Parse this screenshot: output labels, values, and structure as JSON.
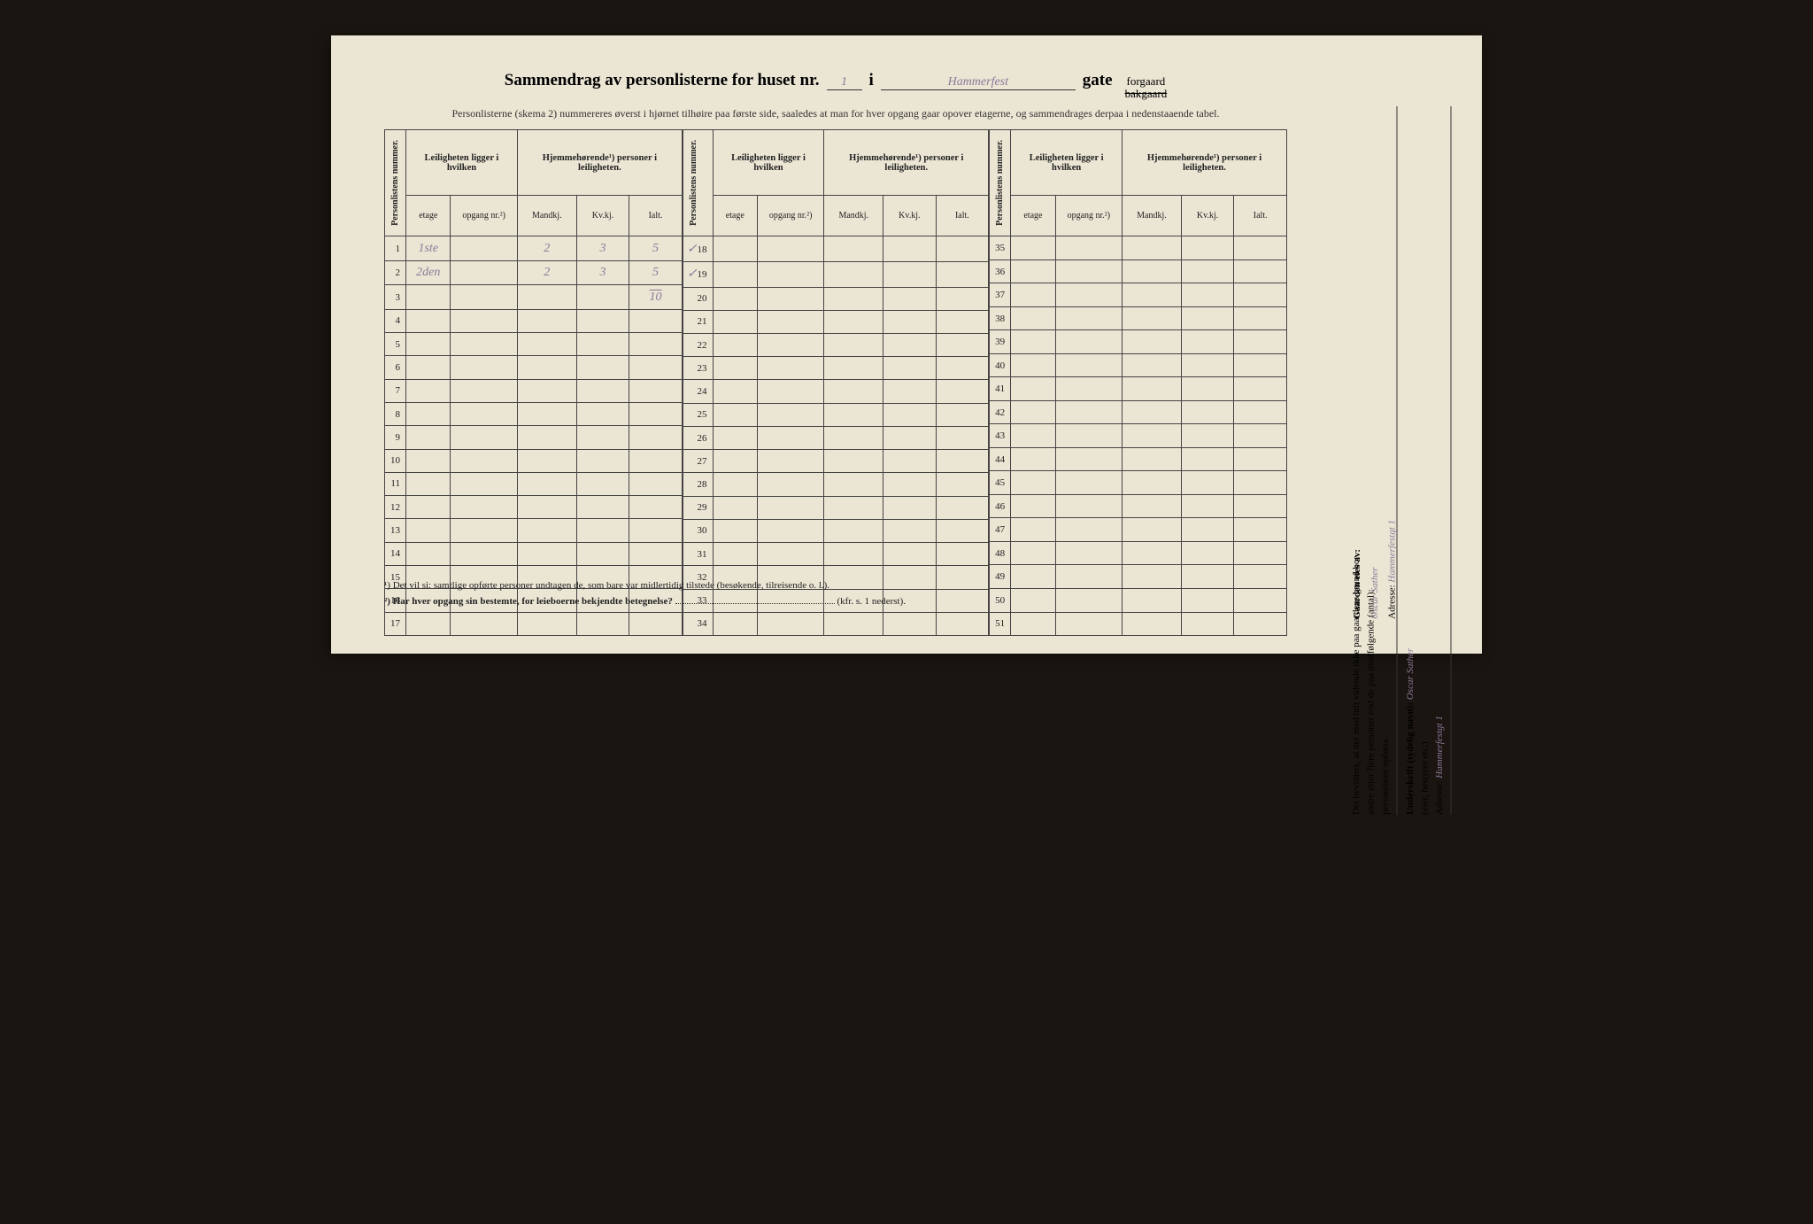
{
  "title": {
    "main": "Sammendrag av personlisterne for huset nr.",
    "house_nr": "1",
    "in": "i",
    "street": "Hammerfest",
    "gate": "gate",
    "forgaard": "forgaard",
    "bakgaard": "bakgaard"
  },
  "subtitle": "Personlisterne (skema 2) nummereres øverst i hjørnet tilhøire paa første side, saaledes at man for hver opgang gaar opover etagerne, og sammendrages derpaa i nedenstaaende tabel.",
  "headers": {
    "personlistens_nummer": "Personlistens nummer.",
    "leiligheten": "Leiligheten ligger i hvilken",
    "hjemmehorende": "Hjemmehørende¹) personer i leiligheten.",
    "etage": "etage",
    "opgang": "opgang nr.²)",
    "mandkj": "Mandkj.",
    "kvkj": "Kv.kj.",
    "ialt": "Ialt."
  },
  "table_sections": [
    {
      "start": 1,
      "end": 17
    },
    {
      "start": 18,
      "end": 34
    },
    {
      "start": 35,
      "end": 51
    }
  ],
  "handwritten_rows": [
    {
      "row": 1,
      "etage": "1ste",
      "opgang": "",
      "mandkj": "2",
      "kvkj": "3",
      "ialt": "5"
    },
    {
      "row": 2,
      "etage": "2den",
      "opgang": "",
      "mandkj": "2",
      "kvkj": "3",
      "ialt": "5"
    },
    {
      "row": 3,
      "etage": "",
      "opgang": "",
      "mandkj": "",
      "kvkj": "",
      "ialt": "10",
      "ialt_note": true
    }
  ],
  "marks": {
    "r18": "✓",
    "r19": "✓"
  },
  "footnotes": {
    "f1": "¹)  Det vil si: samtlige opførte personer undtagen de, som bare var midlertidig tilstede (besøkende, tilreisende o. l.).",
    "f2_label": "²)  Har hver opgang sin bestemte, for leieboerne bekjendte betegnelse?",
    "f2_suffix": "(kfr. s. 1 nederst)."
  },
  "sidebar": {
    "line1": "Det bevidnes, at der med mit vidende ikke paa gaardens grund bor",
    "line2": "andre eller flere personer end de paa medfølgende (antal):",
    "line3": "personlister opførte.",
    "underskrift_label": "Underskrift (tydelig navn):",
    "underskrift_value": "Oscar Sather",
    "etc": "(eier, bestyrer etc.)",
    "adresse_label": "Adresse:",
    "adresse_value": "Hammerfestgt 1"
  },
  "owner": {
    "label": "Gaarden eies av:",
    "name": "Oscar Sather",
    "adresse_label": "Adresse:",
    "adresse_value": "Hammerfestgt 1"
  },
  "colors": {
    "paper": "#ebe5d4",
    "ink": "#222222",
    "pencil": "#8a7a9a",
    "border": "#444444"
  }
}
